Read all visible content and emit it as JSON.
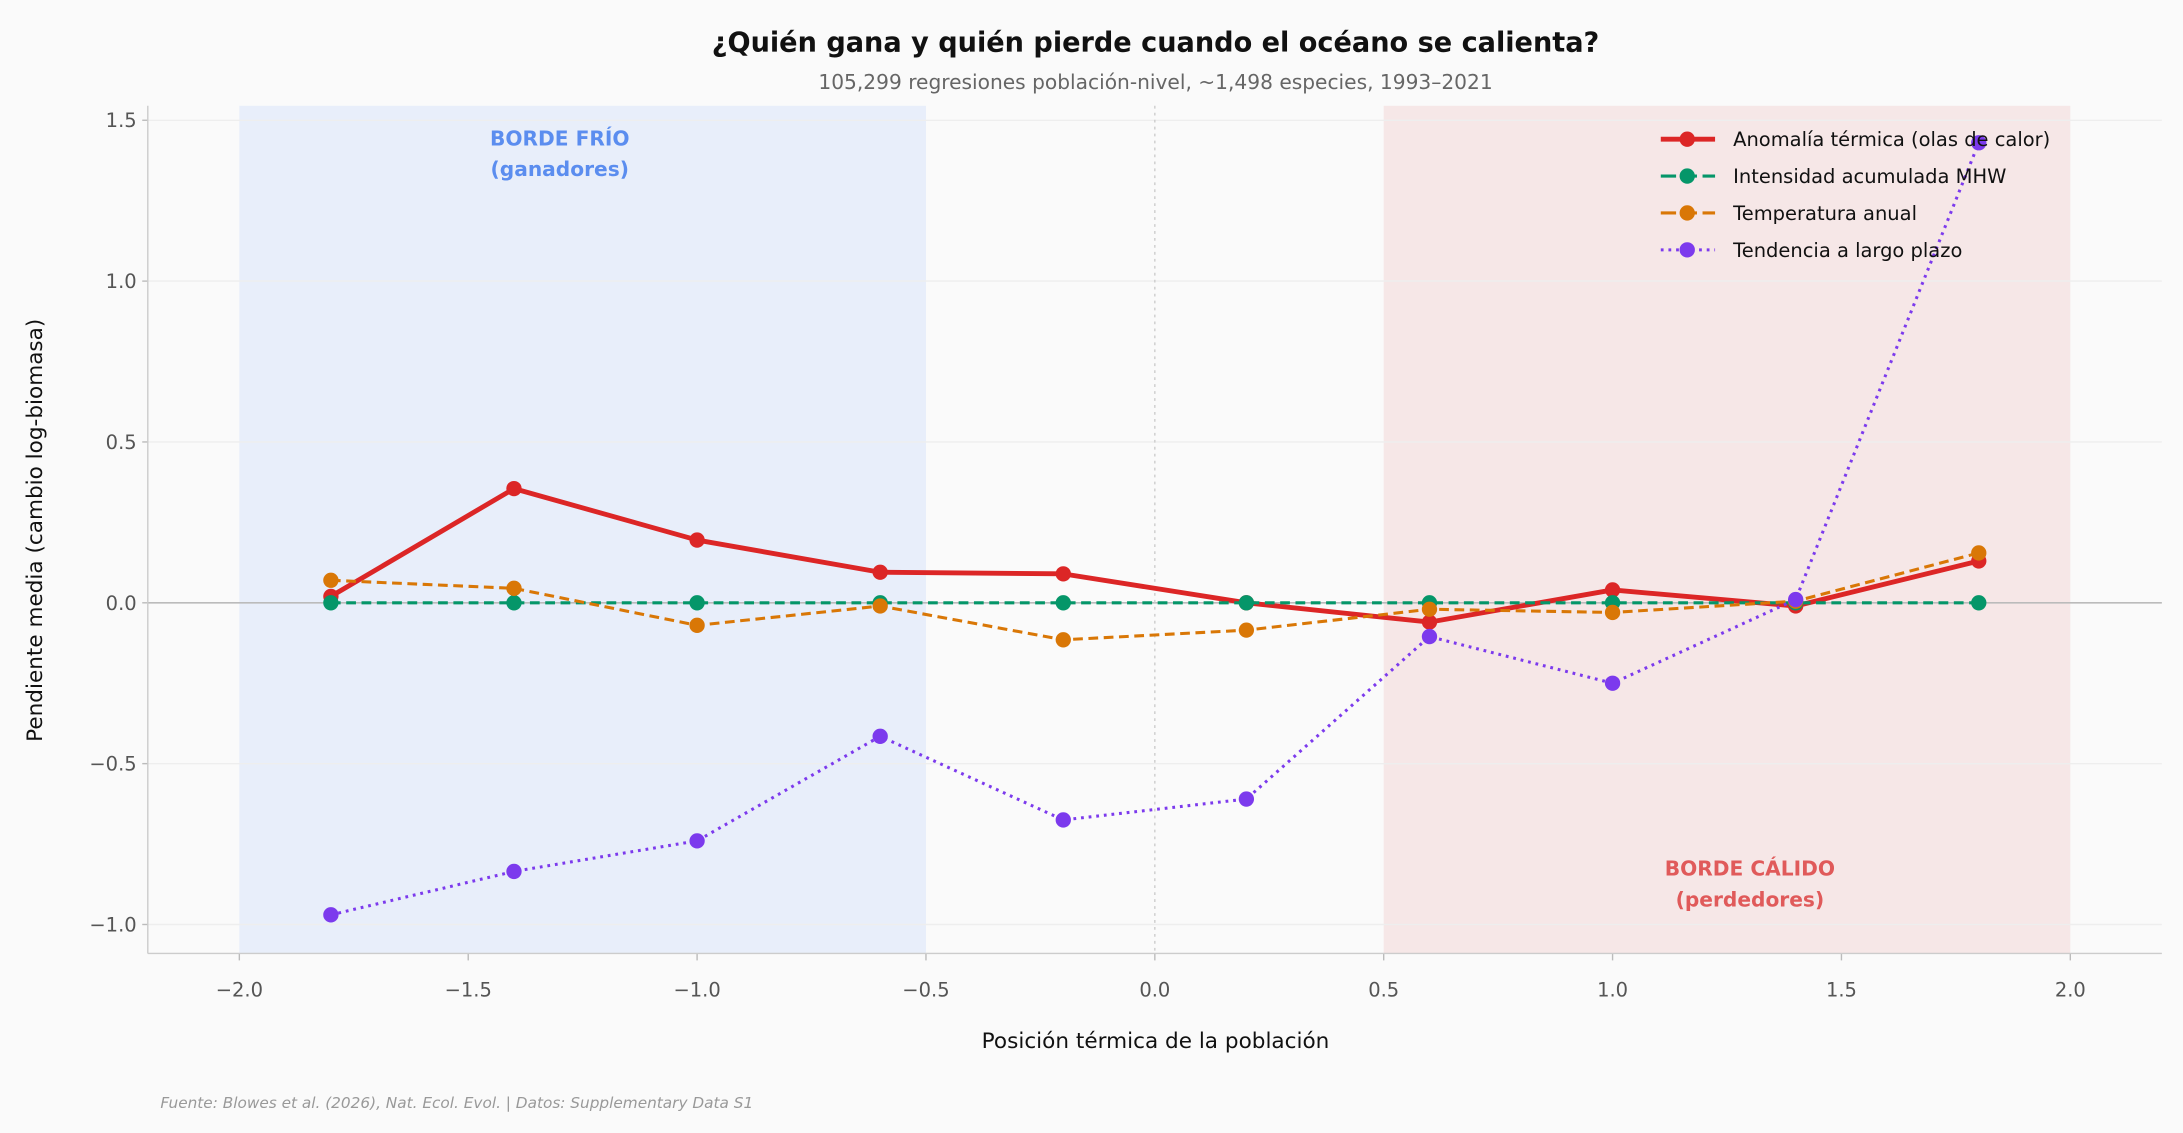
{
  "chart_data": {
    "type": "line",
    "title": "¿Quién gana y quién pierde cuando el océano se calienta?",
    "subtitle": "105,299 regresiones población-nivel, ~1,498 especies, 1993–2021",
    "xlabel": "Posición térmica de la población",
    "ylabel": "Pendiente media (cambio log-biomasa)",
    "xlim": [
      -2.2,
      2.2
    ],
    "ylim": [
      -1.09,
      1.545
    ],
    "xticks": [
      -2.0,
      -1.5,
      -1.0,
      -0.5,
      0.0,
      0.5,
      1.0,
      1.5,
      2.0
    ],
    "xtick_labels": [
      "−2.0",
      "−1.5",
      "−1.0",
      "−0.5",
      "0.0",
      "0.5",
      "1.0",
      "1.5",
      "2.0"
    ],
    "yticks": [
      -1.0,
      -0.5,
      0.0,
      0.5,
      1.0,
      1.5
    ],
    "ytick_labels": [
      "−1.0",
      "−0.5",
      "0.0",
      "0.5",
      "1.0",
      "1.5"
    ],
    "grid": "horizontal",
    "legend_position": "top-right",
    "x": [
      -1.8,
      -1.4,
      -1.0,
      -0.6,
      -0.2,
      0.2,
      0.6,
      1.0,
      1.4,
      1.8
    ],
    "series": [
      {
        "name": "Anomalía térmica (olas de calor)",
        "color": "#dc2626",
        "style": "solid",
        "values": [
          0.02,
          0.355,
          0.195,
          0.095,
          0.09,
          0.0,
          -0.06,
          0.04,
          -0.01,
          0.13
        ]
      },
      {
        "name": "Intensidad acumulada MHW",
        "color": "#059669",
        "style": "dashed",
        "values": [
          0.0,
          0.0,
          0.0,
          0.0,
          0.0,
          0.0,
          0.0,
          0.0,
          0.0,
          0.0
        ]
      },
      {
        "name": "Temperatura anual",
        "color": "#d97706",
        "style": "dashed",
        "values": [
          0.07,
          0.045,
          -0.07,
          -0.01,
          -0.115,
          -0.085,
          -0.02,
          -0.03,
          0.005,
          0.155
        ]
      },
      {
        "name": "Tendencia a largo plazo",
        "color": "#7c3aed",
        "style": "dotted",
        "values": [
          -0.97,
          -0.835,
          -0.74,
          -0.415,
          -0.675,
          -0.61,
          -0.105,
          -0.25,
          0.01,
          1.43
        ]
      }
    ],
    "regions": [
      {
        "x_range": [
          -2.0,
          -0.5
        ],
        "color": "#e8eefa",
        "label_line1": "BORDE FRÍO",
        "label_line2": "(ganadores)",
        "label_color": "#5b8def"
      },
      {
        "x_range": [
          0.5,
          2.0
        ],
        "color": "#f6e7e7",
        "label_line1": "BORDE CÁLIDO",
        "label_line2": "(perdedores)",
        "label_color": "#e05a5a"
      }
    ],
    "source": "Fuente: Blowes et al. (2026), Nat. Ecol. Evol. | Datos: Supplementary Data S1"
  }
}
